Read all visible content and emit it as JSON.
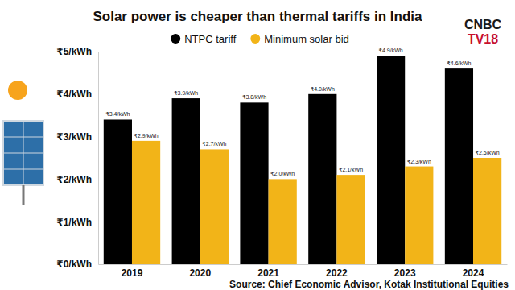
{
  "chart_data": {
    "type": "bar",
    "title": "Solar power is cheaper than thermal tariffs in India",
    "source": "Source: Chief Economic Advisor, Kotak Institutional Equities",
    "logo": [
      "CNBC",
      "TV18"
    ],
    "categories": [
      "2019",
      "2020",
      "2021",
      "2022",
      "2023",
      "2024"
    ],
    "series": [
      {
        "name": "NTPC tariff",
        "color": "#000000",
        "values": [
          3.4,
          3.9,
          3.8,
          4.0,
          4.9,
          4.6
        ],
        "value_labels": [
          "₹3.4/kWh",
          "₹3.9/kWh",
          "₹3.8/kWh",
          "₹4.0/kWh",
          "₹4.9/kWh",
          "₹4.6/kWh"
        ]
      },
      {
        "name": "Minimum solar bid",
        "color": "#f2b418",
        "values": [
          2.9,
          2.7,
          2.0,
          2.1,
          2.3,
          2.5
        ],
        "value_labels": [
          "₹2.9/kWh",
          "₹2.7/kWh",
          "₹2.0/kWh",
          "₹2.1/kWh",
          "₹2.3/kWh",
          "₹2.5/kWh"
        ]
      }
    ],
    "ylim": [
      0,
      5
    ],
    "yticks": [
      {
        "value": 0,
        "label": "₹0/kWh"
      },
      {
        "value": 1,
        "label": "₹1/kWh"
      },
      {
        "value": 2,
        "label": "₹2/kWh"
      },
      {
        "value": 3,
        "label": "₹3/kWh"
      },
      {
        "value": 4,
        "label": "₹4/kWh"
      },
      {
        "value": 5,
        "label": "₹5/kWh"
      }
    ],
    "grid": false,
    "data_labels": true,
    "legend": "top"
  }
}
